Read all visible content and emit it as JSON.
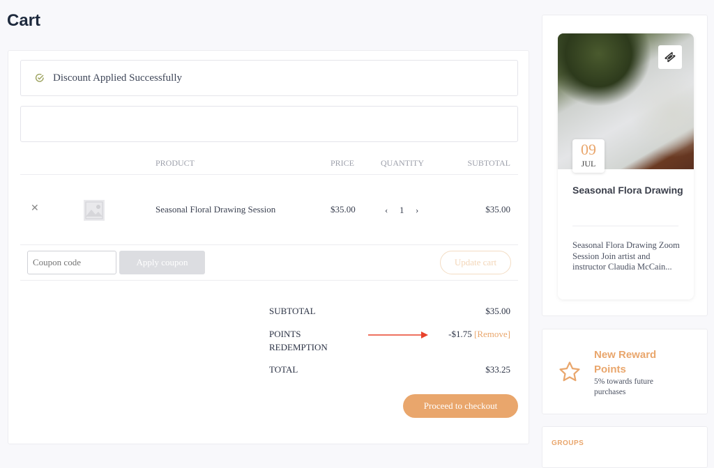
{
  "page_title": "Cart",
  "notice": {
    "text": "Discount Applied Successfully",
    "icon": "check-circle-icon"
  },
  "table": {
    "headers": {
      "product": "PRODUCT",
      "price": "PRICE",
      "quantity": "QUANTITY",
      "subtotal": "SUBTOTAL"
    },
    "rows": [
      {
        "name": "Seasonal Floral Drawing Session",
        "price": "$35.00",
        "quantity": "1",
        "subtotal": "$35.00"
      }
    ]
  },
  "coupon": {
    "placeholder": "Coupon code",
    "apply_label": "Apply coupon",
    "update_label": "Update cart"
  },
  "totals": {
    "subtotal_label": "SUBTOTAL",
    "subtotal_value": "$35.00",
    "points_label_1": "POINTS",
    "points_label_2": "REDEMPTION",
    "points_value": "-$1.75",
    "remove_label": "[Remove]",
    "total_label": "TOTAL",
    "total_value": "$33.25"
  },
  "checkout_label": "Proceed to checkout",
  "event": {
    "day": "09",
    "month": "JUL",
    "title": "Seasonal Flora Drawing",
    "description": "Seasonal Flora Drawing Zoom Session Join artist and instructor Claudia McCain..."
  },
  "reward": {
    "title_1": "New Reward",
    "title_2": "Points",
    "subtitle": "5% towards future purchases"
  },
  "groups_label": "GROUPS",
  "colors": {
    "accent": "#e9a66c",
    "arrow": "#e8422b",
    "heading": "#1e2a3d"
  }
}
